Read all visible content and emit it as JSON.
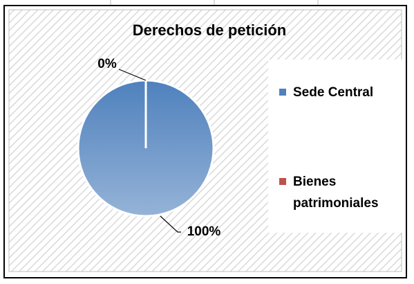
{
  "chart_data": {
    "type": "pie",
    "title": "Derechos de petición",
    "categories": [
      "Sede Central",
      "Bienes patrimoniales"
    ],
    "values": [
      100,
      0
    ],
    "value_labels": [
      "100%",
      "0%"
    ],
    "colors": [
      "#4f81bd",
      "#c0504d"
    ],
    "legend": "right"
  }
}
